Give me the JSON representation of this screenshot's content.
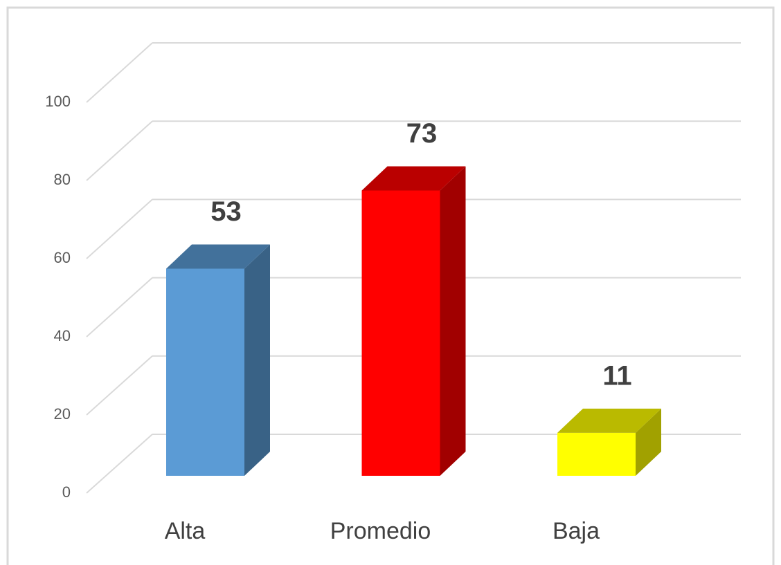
{
  "chart_data": {
    "type": "bar3d",
    "categories": [
      "Alta",
      "Promedio",
      "Baja"
    ],
    "values": [
      53,
      73,
      11
    ],
    "colors": [
      "#5b9bd5",
      "#ff0000",
      "#ffff00"
    ],
    "ylim": [
      0,
      100
    ],
    "yticks": [
      0,
      20,
      40,
      60,
      80,
      100
    ],
    "grid": true
  }
}
